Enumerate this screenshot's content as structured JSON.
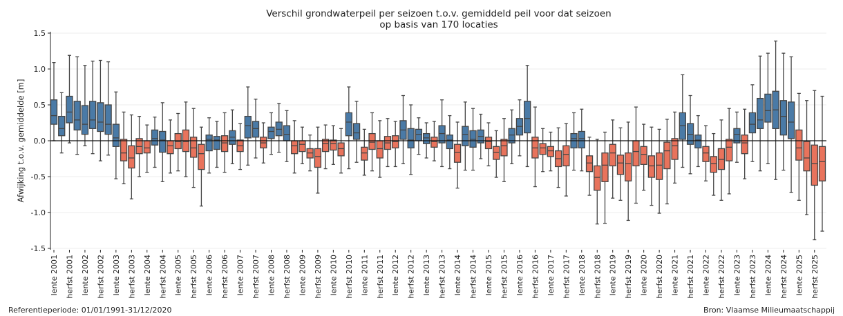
{
  "chart_data": {
    "type": "box",
    "title": "Verschil grondwaterpeil per seizoen t.o.v. gemiddeld peil voor dat seizoen",
    "subtitle": "op basis van 170 locaties",
    "ylabel": "Afwijking t.o.v. gemiddelde [m]",
    "ylim": [
      -1.5,
      1.5
    ],
    "yticks": [
      "-1.5",
      "-1.0",
      "-0.5",
      "0.0",
      "0.5",
      "1.0",
      "1.5"
    ],
    "grid": true,
    "colors": {
      "positive": "#4a7aa6",
      "negative": "#e8735c"
    },
    "xtick_labels": [
      "lente 2001",
      "herfst 2001",
      "lente 2002",
      "herfst 2002",
      "lente 2003",
      "herfst 2003",
      "lente 2004",
      "herfst 2004",
      "lente 2005",
      "herfst 2005",
      "lente 2006",
      "herfst 2006",
      "lente 2007",
      "herfst 2007",
      "lente 2008",
      "herfst 2008",
      "lente 2009",
      "herfst 2009",
      "lente 2010",
      "herfst 2010",
      "lente 2011",
      "herfst 2011",
      "lente 2012",
      "herfst 2012",
      "lente 2013",
      "herfst 2013",
      "lente 2014",
      "herfst 2014",
      "lente 2015",
      "herfst 2015",
      "lente 2016",
      "herfst 2016",
      "lente 2017",
      "herfst 2017",
      "lente 2018",
      "herfst 2018",
      "lente 2019",
      "herfst 2019",
      "lente 2020",
      "herfst 2020",
      "lente 2021",
      "herfst 2021",
      "lente 2022",
      "herfst 2022",
      "lente 2023",
      "herfst 2023",
      "lente 2024",
      "herfst 2024",
      "lente 2025",
      "herfst 2025"
    ],
    "box_fields": [
      "whisker_low",
      "q1",
      "median",
      "q3",
      "whisker_high"
    ],
    "boxes": [
      [
        0.0,
        0.23,
        0.35,
        0.57,
        1.09
      ],
      [
        -0.17,
        0.07,
        0.17,
        0.34,
        0.67
      ],
      [
        -0.03,
        0.25,
        0.4,
        0.62,
        1.19
      ],
      [
        -0.19,
        0.15,
        0.29,
        0.55,
        1.17
      ],
      [
        -0.07,
        0.09,
        0.23,
        0.49,
        1.05
      ],
      [
        -0.18,
        0.17,
        0.29,
        0.55,
        1.11
      ],
      [
        -0.28,
        0.13,
        0.26,
        0.53,
        1.12
      ],
      [
        -0.2,
        0.09,
        0.23,
        0.5,
        1.1
      ],
      [
        -0.53,
        -0.08,
        0.04,
        0.23,
        0.68
      ],
      [
        -0.6,
        -0.28,
        -0.17,
        0.02,
        0.4
      ],
      [
        -0.81,
        -0.38,
        -0.24,
        -0.07,
        0.36
      ],
      [
        -0.5,
        -0.18,
        -0.08,
        0.03,
        0.34
      ],
      [
        -0.44,
        -0.17,
        -0.1,
        0.0,
        0.22
      ],
      [
        -0.37,
        -0.06,
        0.03,
        0.15,
        0.33
      ],
      [
        -0.57,
        -0.16,
        0.01,
        0.13,
        0.53
      ],
      [
        -0.45,
        -0.18,
        -0.07,
        0.0,
        0.29
      ],
      [
        -0.42,
        -0.11,
        -0.01,
        0.1,
        0.38
      ],
      [
        -0.5,
        -0.15,
        -0.01,
        0.15,
        0.54
      ],
      [
        -0.65,
        -0.23,
        -0.1,
        0.05,
        0.45
      ],
      [
        -0.91,
        -0.4,
        -0.18,
        -0.05,
        0.19
      ],
      [
        -0.45,
        -0.14,
        0.02,
        0.08,
        0.32
      ],
      [
        -0.37,
        -0.12,
        0.01,
        0.06,
        0.27
      ],
      [
        -0.44,
        -0.15,
        -0.03,
        0.07,
        0.39
      ],
      [
        -0.32,
        -0.05,
        0.05,
        0.14,
        0.43
      ],
      [
        -0.4,
        -0.15,
        -0.07,
        0.01,
        0.24
      ],
      [
        -0.34,
        0.04,
        0.21,
        0.34,
        0.75
      ],
      [
        -0.24,
        0.05,
        0.17,
        0.27,
        0.58
      ],
      [
        -0.31,
        -0.1,
        -0.03,
        0.05,
        0.25
      ],
      [
        -0.19,
        0.03,
        0.13,
        0.19,
        0.39
      ],
      [
        -0.16,
        0.07,
        0.16,
        0.26,
        0.52
      ],
      [
        -0.29,
        0.0,
        0.09,
        0.21,
        0.42
      ],
      [
        -0.45,
        -0.18,
        -0.07,
        0.0,
        0.28
      ],
      [
        -0.32,
        -0.15,
        -0.05,
        0.0,
        0.19
      ],
      [
        -0.42,
        -0.24,
        -0.17,
        -0.11,
        0.08
      ],
      [
        -0.73,
        -0.37,
        -0.22,
        -0.11,
        0.19
      ],
      [
        -0.39,
        -0.15,
        -0.04,
        0.02,
        0.22
      ],
      [
        -0.33,
        -0.13,
        -0.04,
        0.01,
        0.21
      ],
      [
        -0.45,
        -0.21,
        -0.11,
        -0.03,
        0.17
      ],
      [
        -0.39,
        0.07,
        0.26,
        0.39,
        0.75
      ],
      [
        -0.3,
        0.02,
        0.11,
        0.24,
        0.55
      ],
      [
        -0.48,
        -0.27,
        -0.17,
        -0.09,
        0.16
      ],
      [
        -0.42,
        -0.12,
        -0.02,
        0.1,
        0.39
      ],
      [
        -0.51,
        -0.24,
        -0.11,
        0.0,
        0.28
      ],
      [
        -0.36,
        -0.12,
        -0.03,
        0.06,
        0.31
      ],
      [
        -0.36,
        -0.1,
        -0.01,
        0.07,
        0.27
      ],
      [
        -0.32,
        0.02,
        0.15,
        0.28,
        0.63
      ],
      [
        -0.47,
        -0.1,
        0.01,
        0.17,
        0.5
      ],
      [
        -0.19,
        0.0,
        0.09,
        0.16,
        0.32
      ],
      [
        -0.24,
        -0.04,
        0.04,
        0.1,
        0.25
      ],
      [
        -0.28,
        -0.09,
        -0.01,
        0.05,
        0.27
      ],
      [
        -0.36,
        -0.03,
        0.1,
        0.21,
        0.57
      ],
      [
        -0.39,
        -0.11,
        0.01,
        0.08,
        0.35
      ],
      [
        -0.66,
        -0.3,
        -0.16,
        -0.05,
        0.26
      ],
      [
        -0.41,
        -0.07,
        0.09,
        0.2,
        0.54
      ],
      [
        -0.41,
        -0.09,
        0.02,
        0.14,
        0.45
      ],
      [
        -0.25,
        -0.03,
        0.06,
        0.15,
        0.37
      ],
      [
        -0.35,
        -0.11,
        -0.01,
        0.05,
        0.25
      ],
      [
        -0.51,
        -0.26,
        -0.16,
        -0.08,
        0.14
      ],
      [
        -0.57,
        -0.21,
        -0.07,
        0.02,
        0.31
      ],
      [
        -0.32,
        -0.03,
        0.08,
        0.17,
        0.43
      ],
      [
        -0.21,
        0.08,
        0.2,
        0.31,
        0.57
      ],
      [
        -0.36,
        0.11,
        0.31,
        0.55,
        1.05
      ],
      [
        -0.64,
        -0.24,
        -0.1,
        0.05,
        0.47
      ],
      [
        -0.43,
        -0.19,
        -0.1,
        -0.04,
        0.17
      ],
      [
        -0.42,
        -0.22,
        -0.14,
        -0.08,
        0.12
      ],
      [
        -0.65,
        -0.36,
        -0.25,
        -0.14,
        0.18
      ],
      [
        -0.77,
        -0.35,
        -0.19,
        -0.07,
        0.24
      ],
      [
        -0.41,
        -0.1,
        0.03,
        0.1,
        0.39
      ],
      [
        -0.42,
        -0.1,
        0.03,
        0.13,
        0.44
      ],
      [
        -0.76,
        -0.43,
        -0.31,
        -0.21,
        0.05
      ],
      [
        -1.16,
        -0.69,
        -0.51,
        -0.35,
        0.02
      ],
      [
        -1.15,
        -0.57,
        -0.34,
        -0.17,
        0.12
      ],
      [
        -0.8,
        -0.35,
        -0.17,
        -0.05,
        0.29
      ],
      [
        -0.83,
        -0.47,
        -0.31,
        -0.2,
        0.18
      ],
      [
        -1.11,
        -0.56,
        -0.32,
        -0.17,
        0.26
      ],
      [
        -0.87,
        -0.35,
        -0.15,
        0.0,
        0.47
      ],
      [
        -0.69,
        -0.33,
        -0.19,
        -0.08,
        0.23
      ],
      [
        -0.9,
        -0.51,
        -0.35,
        -0.21,
        0.19
      ],
      [
        -1.01,
        -0.54,
        -0.34,
        -0.17,
        0.16
      ],
      [
        -0.88,
        -0.39,
        -0.14,
        -0.02,
        0.3
      ],
      [
        -0.59,
        -0.26,
        -0.07,
        0.03,
        0.4
      ],
      [
        -0.37,
        0.02,
        0.21,
        0.39,
        0.92
      ],
      [
        -0.46,
        -0.05,
        0.09,
        0.24,
        0.63
      ],
      [
        -0.36,
        -0.1,
        0.01,
        0.08,
        0.35
      ],
      [
        -0.56,
        -0.29,
        -0.17,
        -0.08,
        0.21
      ],
      [
        -0.76,
        -0.44,
        -0.32,
        -0.22,
        0.1
      ],
      [
        -0.83,
        -0.4,
        -0.26,
        -0.11,
        0.29
      ],
      [
        -0.74,
        -0.28,
        -0.09,
        0.02,
        0.45
      ],
      [
        -0.3,
        -0.03,
        0.09,
        0.17,
        0.4
      ],
      [
        -0.53,
        -0.18,
        -0.03,
        0.08,
        0.44
      ],
      [
        -0.29,
        0.11,
        0.23,
        0.39,
        0.78
      ],
      [
        -0.42,
        0.17,
        0.29,
        0.59,
        1.18
      ],
      [
        -0.32,
        0.26,
        0.42,
        0.65,
        1.22
      ],
      [
        -0.54,
        0.17,
        0.43,
        0.69,
        1.39
      ],
      [
        -0.41,
        0.08,
        0.34,
        0.56,
        1.22
      ],
      [
        -0.72,
        0.03,
        0.26,
        0.54,
        1.17
      ],
      [
        -0.83,
        -0.27,
        -0.1,
        0.15,
        0.66
      ],
      [
        -1.03,
        -0.42,
        -0.24,
        -0.01,
        0.56
      ],
      [
        -1.38,
        -0.62,
        -0.32,
        -0.06,
        0.7
      ],
      [
        -1.26,
        -0.56,
        -0.29,
        -0.08,
        0.62
      ]
    ]
  },
  "footer": {
    "reference_period": "Referentieperiode: 01/01/1991-31/12/2020",
    "source": "Bron: Vlaamse Milieumaatschappij"
  }
}
